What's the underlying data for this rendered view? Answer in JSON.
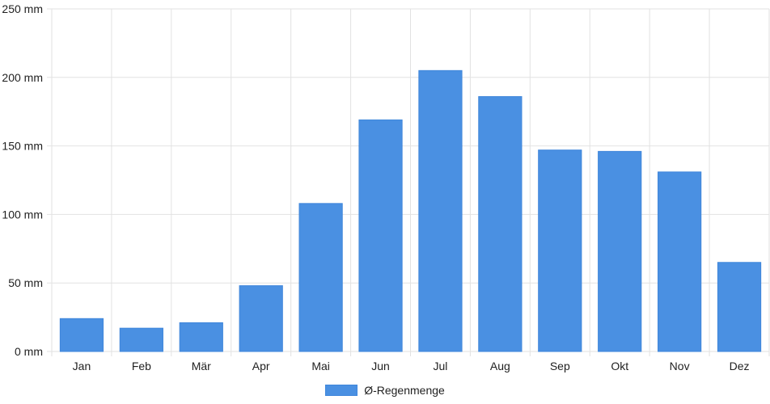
{
  "chart_data": {
    "type": "bar",
    "categories": [
      "Jan",
      "Feb",
      "Mär",
      "Apr",
      "Mai",
      "Jun",
      "Jul",
      "Aug",
      "Sep",
      "Okt",
      "Nov",
      "Dez"
    ],
    "series": [
      {
        "name": "Ø-Regenmenge",
        "values": [
          24,
          17,
          21,
          48,
          108,
          169,
          205,
          186,
          147,
          146,
          131,
          65
        ],
        "color": "#4a90e2"
      }
    ],
    "yticks": [
      "0 mm",
      "50 mm",
      "100 mm",
      "150 mm",
      "200 mm",
      "250 mm"
    ],
    "ylim": [
      0,
      250
    ],
    "grid": true,
    "legend_position": "bottom"
  }
}
